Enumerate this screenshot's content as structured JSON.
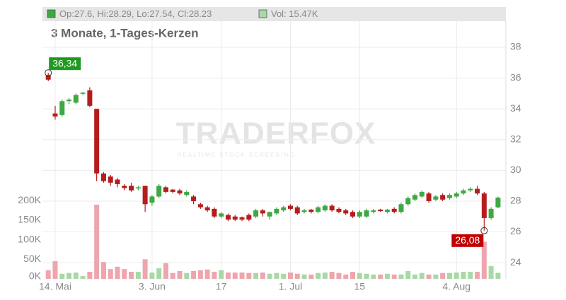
{
  "chart_data": {
    "type": "candlestick",
    "header_price": "Op:27.6, Hi:28.29, Lo:27.54, Cl:28.23",
    "header_volume": "Vol: 15.47K",
    "title": "3 Monate, 1-Tages-Kerzen",
    "watermark": "TRADERFOX",
    "watermark_sub": "REALTIME STOCK SCREENING",
    "categories": [
      null,
      "14. Mai",
      null,
      null,
      null,
      null,
      null,
      null,
      null,
      null,
      null,
      null,
      null,
      null,
      null,
      "3. Jun",
      null,
      null,
      null,
      null,
      null,
      null,
      null,
      null,
      null,
      "17",
      null,
      null,
      null,
      null,
      null,
      null,
      null,
      null,
      null,
      "1. Jul",
      null,
      null,
      null,
      null,
      null,
      null,
      null,
      null,
      null,
      "15",
      null,
      null,
      null,
      null,
      null,
      null,
      null,
      null,
      null,
      null,
      null,
      null,
      null,
      "4. Aug",
      null,
      null,
      null,
      null,
      null,
      null
    ],
    "open": [
      36.2,
      33.7,
      33.6,
      34.5,
      34.4,
      35.0,
      35.2,
      34.0,
      29.8,
      29.6,
      29.4,
      29.0,
      29.0,
      28.85,
      29.0,
      27.9,
      28.3,
      28.9,
      28.75,
      28.7,
      28.4,
      28.3,
      27.8,
      27.6,
      27.5,
      27.0,
      27.1,
      27.0,
      26.95,
      27.1,
      27.0,
      27.4,
      27.0,
      27.2,
      27.4,
      27.7,
      27.6,
      27.3,
      27.45,
      27.3,
      27.4,
      27.7,
      27.5,
      27.4,
      27.3,
      27.0,
      27.0,
      27.3,
      27.45,
      27.3,
      27.5,
      27.3,
      27.8,
      28.1,
      28.3,
      28.5,
      28.1,
      28.4,
      28.2,
      28.3,
      28.5,
      28.7,
      28.8,
      28.5,
      26.9,
      27.6
    ],
    "high": [
      36.34,
      34.2,
      34.6,
      34.7,
      35.0,
      35.1,
      35.4,
      34.0,
      29.9,
      29.7,
      29.5,
      29.1,
      29.2,
      29.0,
      29.0,
      28.4,
      29.1,
      29.0,
      28.8,
      28.8,
      28.7,
      28.4,
      27.9,
      27.7,
      27.6,
      27.3,
      27.2,
      27.1,
      27.0,
      27.2,
      27.5,
      27.5,
      27.3,
      27.6,
      27.7,
      27.8,
      27.7,
      27.5,
      27.5,
      27.7,
      27.8,
      27.8,
      27.6,
      27.5,
      27.4,
      27.4,
      27.5,
      27.5,
      27.5,
      27.5,
      27.6,
      27.9,
      28.3,
      28.5,
      28.7,
      28.6,
      28.4,
      28.5,
      28.5,
      28.6,
      28.8,
      28.9,
      29.0,
      28.6,
      27.6,
      28.29
    ],
    "low": [
      35.8,
      33.3,
      33.5,
      34.3,
      34.3,
      34.9,
      34.1,
      29.3,
      29.2,
      29.0,
      28.9,
      28.7,
      28.6,
      28.7,
      27.3,
      27.7,
      28.2,
      28.5,
      28.5,
      28.4,
      28.3,
      27.8,
      27.5,
      27.3,
      26.9,
      26.9,
      26.7,
      26.7,
      26.7,
      26.7,
      26.9,
      27.0,
      26.8,
      27.1,
      27.3,
      27.4,
      27.1,
      27.2,
      27.2,
      27.2,
      27.3,
      27.3,
      27.2,
      27.1,
      26.9,
      26.9,
      26.9,
      27.2,
      27.3,
      27.2,
      27.2,
      27.2,
      27.7,
      28.0,
      28.2,
      27.9,
      28.0,
      28.0,
      28.1,
      28.2,
      28.4,
      28.6,
      28.4,
      26.08,
      26.8,
      27.54
    ],
    "close": [
      35.9,
      33.5,
      34.5,
      34.6,
      34.9,
      35.05,
      34.2,
      29.8,
      29.3,
      29.2,
      29.1,
      28.85,
      28.7,
      28.9,
      27.8,
      28.3,
      29.0,
      28.6,
      28.6,
      28.5,
      28.6,
      28.0,
      27.6,
      27.4,
      27.0,
      27.2,
      26.8,
      26.8,
      26.8,
      26.8,
      27.4,
      27.2,
      27.3,
      27.5,
      27.6,
      27.5,
      27.2,
      27.4,
      27.3,
      27.6,
      27.7,
      27.4,
      27.3,
      27.2,
      27.0,
      27.3,
      27.4,
      27.4,
      27.35,
      27.45,
      27.3,
      27.8,
      28.2,
      28.4,
      28.6,
      28.0,
      28.3,
      28.1,
      28.4,
      28.5,
      28.7,
      28.8,
      28.5,
      26.9,
      27.5,
      28.23
    ],
    "volume": [
      22000,
      45000,
      13000,
      15000,
      16000,
      7000,
      18000,
      190000,
      43000,
      25000,
      31000,
      25000,
      18000,
      18000,
      50000,
      16000,
      27000,
      40000,
      15000,
      20000,
      15000,
      20000,
      22000,
      24000,
      18000,
      22000,
      16000,
      16000,
      16000,
      15000,
      15000,
      16000,
      13000,
      15000,
      13000,
      16000,
      13000,
      11000,
      11000,
      15000,
      16000,
      18000,
      15000,
      11000,
      18000,
      15000,
      13000,
      11000,
      11000,
      13000,
      11000,
      11000,
      20000,
      11000,
      15000,
      11000,
      11000,
      15000,
      15000,
      16000,
      18000,
      18000,
      18000,
      95000,
      33000,
      15470
    ],
    "up_color": "#3ea843",
    "down_color": "#b51d1d",
    "volume_up_color": "#a9d8a6",
    "volume_down_color": "#eea5ad",
    "ylim": [
      22.95,
      39.7
    ],
    "yticks": [
      24,
      26,
      28,
      30,
      32,
      34,
      36,
      38
    ],
    "y2lim": [
      0,
      660000
    ],
    "y2ticks": [
      {
        "value": 0,
        "label": "0K"
      },
      {
        "value": 50000,
        "label": "50K"
      },
      {
        "value": 100000,
        "label": "100K"
      },
      {
        "value": 150000,
        "label": "150K"
      },
      {
        "value": 200000,
        "label": "200K"
      }
    ],
    "annotations": [
      {
        "label": "36,34",
        "value": 36.34,
        "color": "#1e9a1e"
      },
      {
        "label": "26,08",
        "value": 26.08,
        "color": "#c00000"
      }
    ],
    "grid": true
  }
}
